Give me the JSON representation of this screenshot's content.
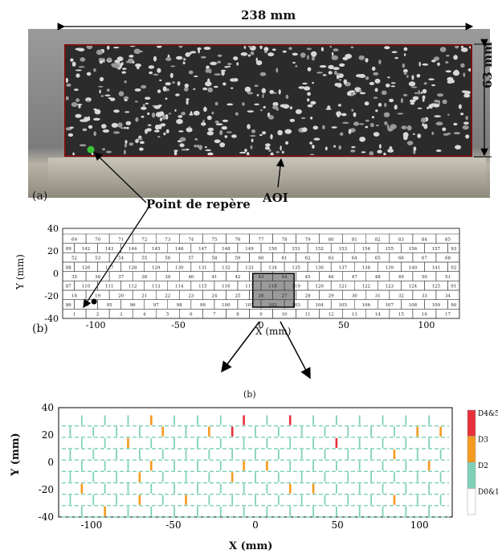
{
  "photo": {
    "width_label": "238 mm",
    "height_label": "63 mm",
    "panel_label": "(a)",
    "reference_label": "Point de repère",
    "aoi_label": "AOI",
    "colors": {
      "aoi_border": "#7a1010",
      "reference_dot": "#39c43a"
    }
  },
  "grid_plot": {
    "panel_label": "(b)",
    "x_label": "X (mm)",
    "y_label": "Y (mm)",
    "x_ticks": [
      "-100",
      "-50",
      "0",
      "50",
      "100"
    ],
    "y_ticks": [
      "40",
      "20",
      "0",
      "-20",
      "-40"
    ],
    "rows": [
      [
        "69",
        "70",
        "71",
        "72",
        "73",
        "74",
        "75",
        "76",
        "77",
        "78",
        "79",
        "80",
        "81",
        "82",
        "83",
        "84",
        "85"
      ],
      [
        "89",
        "142",
        "143",
        "144",
        "145",
        "146",
        "147",
        "148",
        "149",
        "150",
        "151",
        "152",
        "153",
        "154",
        "155",
        "156",
        "157",
        "93"
      ],
      [
        "52",
        "53",
        "54",
        "55",
        "56",
        "57",
        "58",
        "59",
        "60",
        "61",
        "62",
        "63",
        "64",
        "65",
        "66",
        "67",
        "68"
      ],
      [
        "88",
        "126",
        "127",
        "128",
        "129",
        "130",
        "131",
        "132",
        "133",
        "134",
        "135",
        "136",
        "137",
        "138",
        "139",
        "140",
        "141",
        "92"
      ],
      [
        "35",
        "36",
        "37",
        "38",
        "39",
        "40",
        "41",
        "42",
        "43",
        "44",
        "45",
        "46",
        "47",
        "48",
        "49",
        "50",
        "51"
      ],
      [
        "87",
        "110",
        "111",
        "112",
        "113",
        "114",
        "115",
        "116",
        "117",
        "118",
        "119",
        "120",
        "121",
        "122",
        "123",
        "124",
        "125",
        "91"
      ],
      [
        "18",
        "19",
        "20",
        "21",
        "22",
        "23",
        "24",
        "25",
        "26",
        "27",
        "28",
        "29",
        "30",
        "31",
        "32",
        "33",
        "34"
      ],
      [
        "86",
        "94",
        "95",
        "96",
        "97",
        "98",
        "99",
        "100",
        "101",
        "102",
        "103",
        "104",
        "105",
        "106",
        "107",
        "108",
        "109",
        "90"
      ],
      [
        "1",
        "2",
        "3",
        "4",
        "5",
        "6",
        "7",
        "8",
        "9",
        "10",
        "11",
        "12",
        "13",
        "14",
        "15",
        "16",
        "17"
      ]
    ]
  },
  "damage_plot": {
    "title": "(b)",
    "x_label": "X (mm)",
    "y_label": "Y (mm)",
    "x_ticks": [
      "-100",
      "-50",
      "0",
      "50",
      "100"
    ],
    "y_ticks": [
      "40",
      "20",
      "0",
      "-20",
      "-40"
    ],
    "legend": [
      "D4&5",
      "D3",
      "D2",
      "D0&1"
    ],
    "colors": {
      "d45": "#e8303a",
      "d3": "#f59a1f",
      "d2": "#7fd0b8",
      "d01": "#ffffff"
    }
  }
}
